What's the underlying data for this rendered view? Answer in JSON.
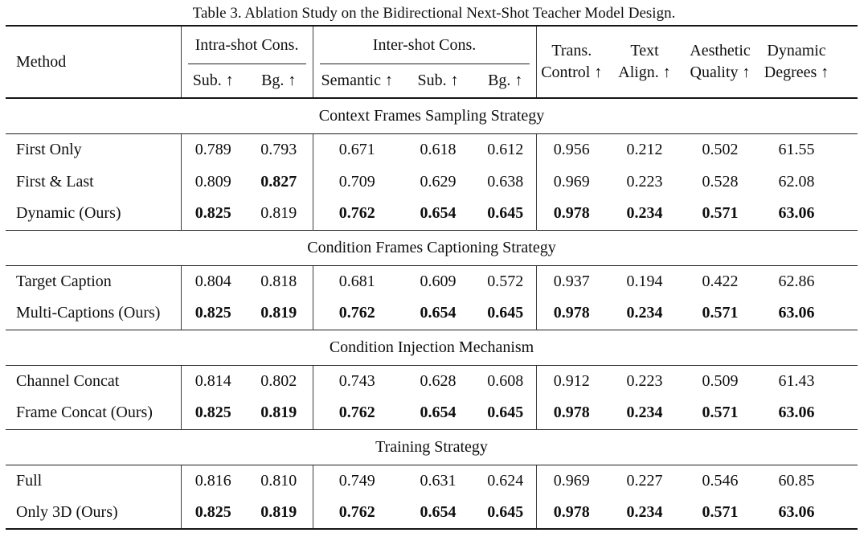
{
  "caption": "Table 3. Ablation Study on the Bidirectional Next-Shot Teacher Model Design.",
  "table": {
    "method_label": "Method",
    "groups": [
      {
        "label": "Intra-shot Cons.",
        "cols": [
          "Sub. ↑",
          "Bg. ↑"
        ]
      },
      {
        "label": "Inter-shot Cons.",
        "cols": [
          "Semantic ↑",
          "Sub. ↑",
          "Bg. ↑"
        ]
      }
    ],
    "plain_cols": [
      {
        "line1": "Trans.",
        "line2": "Control ↑"
      },
      {
        "line1": "Text",
        "line2": "Align. ↑"
      },
      {
        "line1": "Aesthetic",
        "line2": "Quality ↑"
      },
      {
        "line1": "Dynamic",
        "line2": "Degrees ↑"
      }
    ],
    "sections": [
      {
        "title": "Context Frames Sampling Strategy",
        "rows": [
          {
            "method": "First Only",
            "values": [
              "0.789",
              "0.793",
              "0.671",
              "0.618",
              "0.612",
              "0.956",
              "0.212",
              "0.502",
              "61.55"
            ],
            "bold": [
              0,
              0,
              0,
              0,
              0,
              0,
              0,
              0,
              0
            ]
          },
          {
            "method": "First & Last",
            "values": [
              "0.809",
              "0.827",
              "0.709",
              "0.629",
              "0.638",
              "0.969",
              "0.223",
              "0.528",
              "62.08"
            ],
            "bold": [
              0,
              1,
              0,
              0,
              0,
              0,
              0,
              0,
              0
            ]
          },
          {
            "method": "Dynamic (Ours)",
            "values": [
              "0.825",
              "0.819",
              "0.762",
              "0.654",
              "0.645",
              "0.978",
              "0.234",
              "0.571",
              "63.06"
            ],
            "bold": [
              1,
              0,
              1,
              1,
              1,
              1,
              1,
              1,
              1
            ]
          }
        ]
      },
      {
        "title": "Condition Frames Captioning Strategy",
        "rows": [
          {
            "method": "Target Caption",
            "values": [
              "0.804",
              "0.818",
              "0.681",
              "0.609",
              "0.572",
              "0.937",
              "0.194",
              "0.422",
              "62.86"
            ],
            "bold": [
              0,
              0,
              0,
              0,
              0,
              0,
              0,
              0,
              0
            ]
          },
          {
            "method": "Multi-Captions (Ours)",
            "values": [
              "0.825",
              "0.819",
              "0.762",
              "0.654",
              "0.645",
              "0.978",
              "0.234",
              "0.571",
              "63.06"
            ],
            "bold": [
              1,
              1,
              1,
              1,
              1,
              1,
              1,
              1,
              1
            ]
          }
        ]
      },
      {
        "title": "Condition Injection Mechanism",
        "rows": [
          {
            "method": "Channel Concat",
            "values": [
              "0.814",
              "0.802",
              "0.743",
              "0.628",
              "0.608",
              "0.912",
              "0.223",
              "0.509",
              "61.43"
            ],
            "bold": [
              0,
              0,
              0,
              0,
              0,
              0,
              0,
              0,
              0
            ]
          },
          {
            "method": "Frame Concat (Ours)",
            "values": [
              "0.825",
              "0.819",
              "0.762",
              "0.654",
              "0.645",
              "0.978",
              "0.234",
              "0.571",
              "63.06"
            ],
            "bold": [
              1,
              1,
              1,
              1,
              1,
              1,
              1,
              1,
              1
            ]
          }
        ]
      },
      {
        "title": "Training Strategy",
        "rows": [
          {
            "method": "Full",
            "values": [
              "0.816",
              "0.810",
              "0.749",
              "0.631",
              "0.624",
              "0.969",
              "0.227",
              "0.546",
              "60.85"
            ],
            "bold": [
              0,
              0,
              0,
              0,
              0,
              0,
              0,
              0,
              0
            ]
          },
          {
            "method": "Only 3D (Ours)",
            "values": [
              "0.825",
              "0.819",
              "0.762",
              "0.654",
              "0.645",
              "0.978",
              "0.234",
              "0.571",
              "63.06"
            ],
            "bold": [
              1,
              1,
              1,
              1,
              1,
              1,
              1,
              1,
              1
            ]
          }
        ]
      }
    ]
  },
  "colors": {
    "background": "#ffffff",
    "text": "#0f0f0f",
    "rule_heavy": "#151515",
    "rule_light": "#1f1f1f",
    "vertical_bar": "#3d3d3d"
  }
}
